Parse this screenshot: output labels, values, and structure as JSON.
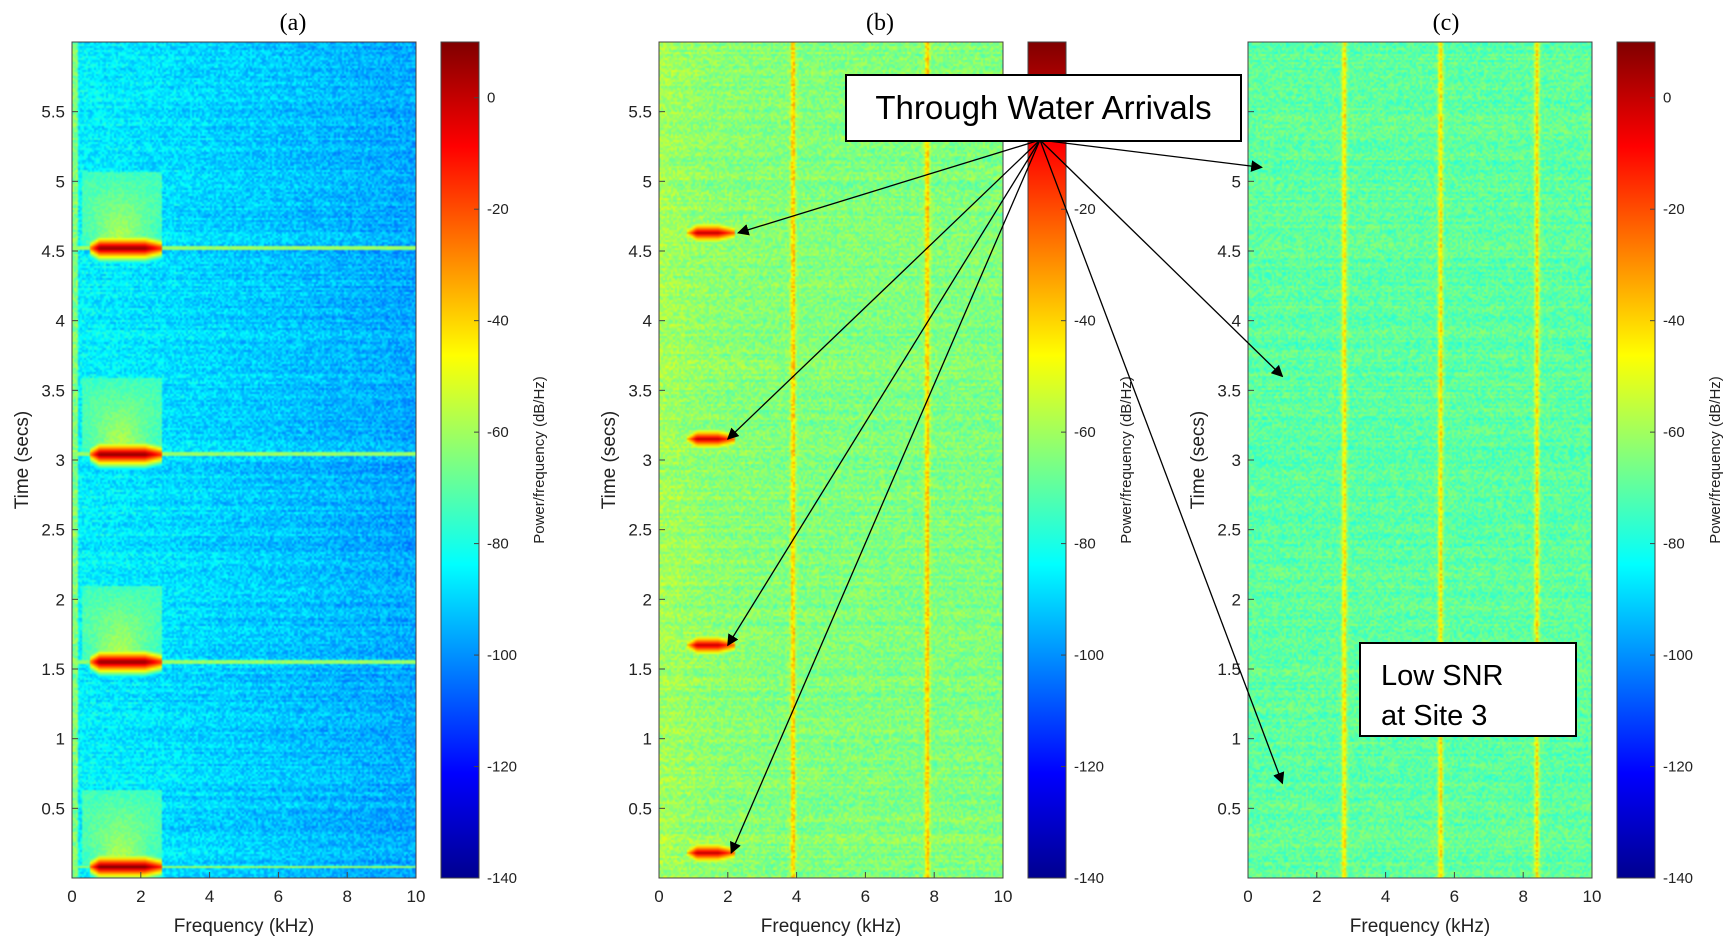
{
  "chart_data": [
    {
      "type": "heatmap",
      "title": "(a)",
      "xlabel": "Frequency (kHz)",
      "ylabel": "Time (secs)",
      "xlim": [
        0,
        10
      ],
      "ylim": [
        0,
        6
      ],
      "xticks": [
        "0",
        "2",
        "4",
        "6",
        "8",
        "10"
      ],
      "yticks": [
        "0.5",
        "1",
        "1.5",
        "2",
        "2.5",
        "3",
        "3.5",
        "4",
        "4.5",
        "5",
        "5.5"
      ],
      "background_level_db": -85,
      "arrivals": [
        {
          "time": 0.08,
          "f_start": 0.5,
          "f_end": 2.6,
          "level_db": 5
        },
        {
          "time": 1.55,
          "f_start": 0.5,
          "f_end": 2.6,
          "level_db": 5
        },
        {
          "time": 3.04,
          "f_start": 0.5,
          "f_end": 2.6,
          "level_db": 5
        },
        {
          "time": 4.52,
          "f_start": 0.5,
          "f_end": 2.6,
          "level_db": 5
        }
      ],
      "colorbar": {
        "label": "Power/frequency (dB/Hz)",
        "range": [
          -140,
          10
        ],
        "ticks": [
          "0",
          "-20",
          "-40",
          "-60",
          "-80",
          "-100",
          "-120",
          "-140"
        ]
      }
    },
    {
      "type": "heatmap",
      "title": "(b)",
      "xlabel": "Frequency (kHz)",
      "ylabel": "Time (secs)",
      "xlim": [
        0,
        10
      ],
      "ylim": [
        0,
        6
      ],
      "xticks": [
        "0",
        "2",
        "4",
        "6",
        "8",
        "10"
      ],
      "yticks": [
        "0.5",
        "1",
        "1.5",
        "2",
        "2.5",
        "3",
        "3.5",
        "4",
        "4.5",
        "5",
        "5.5"
      ],
      "background_level_db": -65,
      "tonal_lines_khz": [
        3.9,
        7.8
      ],
      "arrivals": [
        {
          "time": 0.18,
          "f_start": 0.8,
          "f_end": 2.2,
          "level_db": 0
        },
        {
          "time": 1.67,
          "f_start": 0.8,
          "f_end": 2.2,
          "level_db": 0
        },
        {
          "time": 3.15,
          "f_start": 0.8,
          "f_end": 2.2,
          "level_db": 0
        },
        {
          "time": 4.63,
          "f_start": 0.8,
          "f_end": 2.2,
          "level_db": 0
        }
      ],
      "colorbar": {
        "label": "Power/frequency (dB/Hz)",
        "range": [
          -140,
          10
        ],
        "ticks": [
          "0",
          "-20",
          "-40",
          "-60",
          "-80",
          "-100",
          "-120",
          "-140"
        ]
      }
    },
    {
      "type": "heatmap",
      "title": "(c)",
      "xlabel": "Frequency (kHz)",
      "ylabel": "Time (secs)",
      "xlim": [
        0,
        10
      ],
      "ylim": [
        0,
        6
      ],
      "xticks": [
        "0",
        "2",
        "4",
        "6",
        "8",
        "10"
      ],
      "yticks": [
        "0.5",
        "1",
        "1.5",
        "2",
        "2.5",
        "3",
        "3.5",
        "4",
        "4.5",
        "5",
        "5.5"
      ],
      "background_level_db": -70,
      "tonal_lines_khz": [
        2.8,
        5.6,
        8.4
      ],
      "arrivals": [
        {
          "time": 0.65,
          "f_start": 0.5,
          "f_end": 1.6,
          "level_db": -60
        },
        {
          "time": 3.62,
          "f_start": 0.5,
          "f_end": 10,
          "level_db": -55
        },
        {
          "time": 5.1,
          "f_start": 0.5,
          "f_end": 1.8,
          "level_db": -60
        }
      ],
      "colorbar": {
        "label": "Power/frequency (dB/Hz)",
        "range": [
          -140,
          10
        ],
        "ticks": [
          "0",
          "-20",
          "-40",
          "-60",
          "-80",
          "-100",
          "-120",
          "-140"
        ]
      }
    }
  ],
  "annotations": {
    "arrivals_label": "Through Water Arrivals",
    "snr_line1": "Low SNR",
    "snr_line2": "at Site 3",
    "arrow_targets": [
      {
        "panel": 1,
        "time": 4.63,
        "freq": 2.3
      },
      {
        "panel": 1,
        "time": 3.15,
        "freq": 2.0
      },
      {
        "panel": 1,
        "time": 1.67,
        "freq": 2.0
      },
      {
        "panel": 1,
        "time": 0.18,
        "freq": 2.1
      },
      {
        "panel": 2,
        "time": 5.1,
        "freq": 0.4
      },
      {
        "panel": 2,
        "time": 3.6,
        "freq": 1.0
      },
      {
        "panel": 2,
        "time": 0.68,
        "freq": 1.0
      }
    ]
  }
}
